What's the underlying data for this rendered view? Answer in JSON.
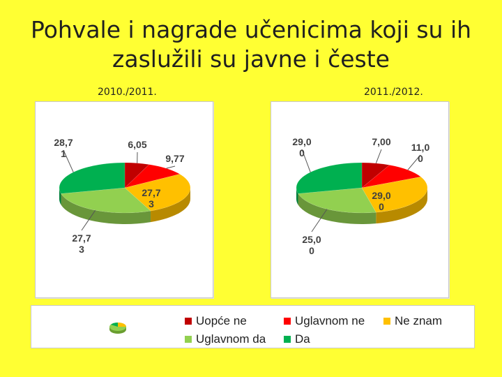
{
  "title_line1": "Pohvale i nagrade učenicima koji su ih",
  "title_line2": "zaslužili su javne i česte",
  "chart_data": [
    {
      "type": "pie",
      "title": "2010./2011.",
      "categories": [
        "Uopće ne",
        "Uglavnom ne",
        "Ne znam",
        "Uglavnom da",
        "Da"
      ],
      "values": [
        6.05,
        9.77,
        27.73,
        27.73,
        28.71
      ],
      "value_labels": [
        [
          "6,05"
        ],
        [
          "9,77"
        ],
        [
          "27,7",
          "3"
        ],
        [
          "27,7",
          "3"
        ],
        [
          "28,7",
          "1"
        ]
      ],
      "colors": [
        "#c00000",
        "#ff0000",
        "#ffc000",
        "#92d050",
        "#00b050"
      ],
      "legend": "bottom",
      "three_d": true
    },
    {
      "type": "pie",
      "title": "2011./2012.",
      "categories": [
        "Uopće ne",
        "Uglavnom ne",
        "Ne znam",
        "Uglavnom da",
        "Da"
      ],
      "values": [
        7.0,
        11.0,
        29.0,
        25.0,
        29.0
      ],
      "value_labels": [
        [
          "7,00"
        ],
        [
          "11,0",
          "0"
        ],
        [
          "29,0",
          "0"
        ],
        [
          "25,0",
          "0"
        ],
        [
          "29,0",
          "0"
        ]
      ],
      "colors": [
        "#c00000",
        "#ff0000",
        "#ffc000",
        "#92d050",
        "#00b050"
      ],
      "legend": "bottom",
      "three_d": true
    }
  ],
  "legend": {
    "items": [
      {
        "label": "Uopće ne",
        "color": "#c00000"
      },
      {
        "label": "Uglavnom ne",
        "color": "#ff0000"
      },
      {
        "label": "Ne znam",
        "color": "#ffc000"
      },
      {
        "label": "Uglavnom da",
        "color": "#92d050"
      },
      {
        "label": "Da",
        "color": "#00b050"
      }
    ]
  }
}
